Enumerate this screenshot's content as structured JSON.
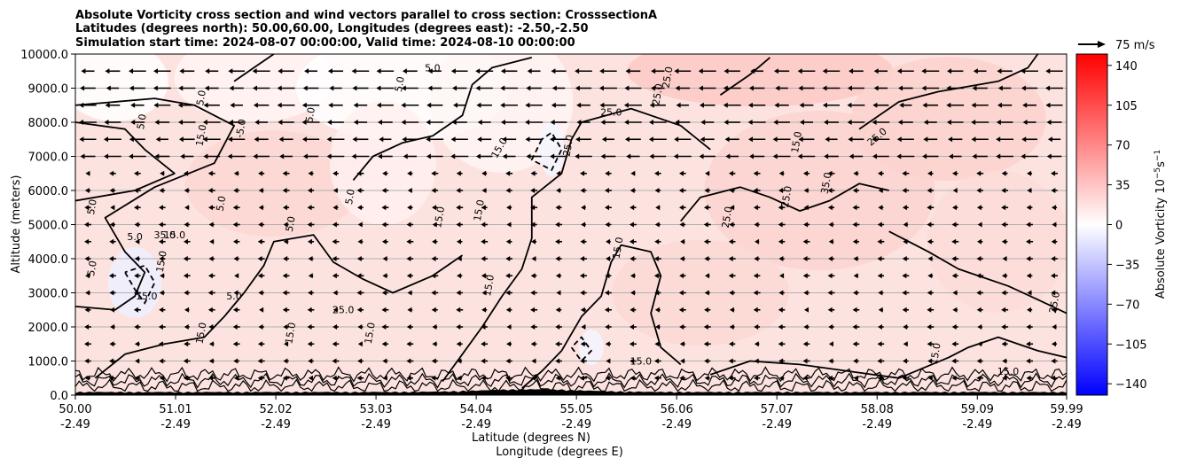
{
  "chart_data": {
    "type": "heatmap",
    "title_lines": [
      "Absolute Vorticity cross section and wind vectors parallel to cross section: CrosssectionA",
      "Latitudes (degrees north): 50.00,60.00, Longitudes (degrees east): -2.50,-2.50",
      "Simulation start time: 2024-08-07 00:00:00, Valid time: 2024-08-10 00:00:00"
    ],
    "xlabel_lines": [
      "Latitude (degrees N)",
      "Longitude (degrees E)"
    ],
    "ylabel": "Altitude (meters)",
    "x_ticks": [
      {
        "lat": "50.00",
        "lon": "-2.49"
      },
      {
        "lat": "51.01",
        "lon": "-2.49"
      },
      {
        "lat": "52.02",
        "lon": "-2.49"
      },
      {
        "lat": "53.03",
        "lon": "-2.49"
      },
      {
        "lat": "54.04",
        "lon": "-2.49"
      },
      {
        "lat": "55.05",
        "lon": "-2.49"
      },
      {
        "lat": "56.06",
        "lon": "-2.49"
      },
      {
        "lat": "57.07",
        "lon": "-2.49"
      },
      {
        "lat": "58.08",
        "lon": "-2.49"
      },
      {
        "lat": "59.09",
        "lon": "-2.49"
      },
      {
        "lat": "59.99",
        "lon": "-2.49"
      }
    ],
    "x_range": [
      50.0,
      59.99
    ],
    "y_ticks": [
      "0.0",
      "1000.0",
      "2000.0",
      "3000.0",
      "4000.0",
      "5000.0",
      "6000.0",
      "7000.0",
      "8000.0",
      "9000.0",
      "10000.0"
    ],
    "y_range": [
      0,
      10000
    ],
    "horizontal_grid": true,
    "colorbar": {
      "label": "Absolute Vorticity 10$^{-5}$s$^{-1}$",
      "label_main": "Absolute Vorticity 10",
      "label_exp1": "−5",
      "label_mid": "s",
      "label_exp2": "−1",
      "ticks": [
        "140",
        "105",
        "70",
        "35",
        "0",
        "−35",
        "−70",
        "−105",
        "−140"
      ],
      "range": [
        -150,
        150
      ],
      "colormap": "bwr",
      "color_low": "#0000ff",
      "color_mid": "#ffffff",
      "color_high": "#ff0000"
    },
    "quiver_key": {
      "label": "75 m/s",
      "speed": 75
    },
    "wind": {
      "columns": 40,
      "rows_altitudes": [
        9500,
        9000,
        8500,
        8000,
        7500,
        7000,
        6500,
        6000,
        5500,
        5000,
        4500,
        4000,
        3500,
        3000,
        2500,
        2000,
        1500,
        1000,
        500
      ],
      "upper_speed": 20,
      "lower_speed": 5
    },
    "contour_levels_labeled": [
      "5.0",
      "15.0",
      "25.0",
      "35.0",
      "-5.0",
      "-15.0"
    ],
    "contour_labels": [
      {
        "text": "5.0",
        "lat": 53.6,
        "alt": 9500,
        "rot": 0
      },
      {
        "text": "5.0",
        "lat": 51.3,
        "alt": 8700,
        "rot": -80
      },
      {
        "text": "5.0",
        "lat": 50.7,
        "alt": 8000,
        "rot": -80
      },
      {
        "text": "5.0",
        "lat": 51.5,
        "alt": 5600,
        "rot": -80
      },
      {
        "text": "5.0",
        "lat": 50.2,
        "alt": 5500,
        "rot": -80
      },
      {
        "text": "5.0",
        "lat": 50.6,
        "alt": 4550,
        "rot": 0
      },
      {
        "text": "5.0",
        "lat": 50.2,
        "alt": 3700,
        "rot": -80
      },
      {
        "text": "5.0",
        "lat": 51.6,
        "alt": 2800,
        "rot": 0
      },
      {
        "text": "5.0",
        "lat": 52.2,
        "alt": 5000,
        "rot": -80
      },
      {
        "text": "5.0",
        "lat": 52.8,
        "alt": 5800,
        "rot": -80
      },
      {
        "text": "5.0",
        "lat": 52.4,
        "alt": 8200,
        "rot": -80
      },
      {
        "text": "5.0",
        "lat": 53.3,
        "alt": 9100,
        "rot": -80
      },
      {
        "text": "-5.0",
        "lat": 51.7,
        "alt": 7800,
        "rot": -80
      },
      {
        "text": "15.0",
        "lat": 51.3,
        "alt": 7600,
        "rot": -80
      },
      {
        "text": "15.0",
        "lat": 51.0,
        "alt": 4600,
        "rot": 0
      },
      {
        "text": "15.0",
        "lat": 50.9,
        "alt": 3900,
        "rot": -80
      },
      {
        "text": "15.0",
        "lat": 51.3,
        "alt": 1800,
        "rot": -80
      },
      {
        "text": "15.0",
        "lat": 52.2,
        "alt": 1800,
        "rot": -80
      },
      {
        "text": "15.0",
        "lat": 53.0,
        "alt": 1800,
        "rot": -80
      },
      {
        "text": "15.0",
        "lat": 54.3,
        "alt": 7200,
        "rot": -60
      },
      {
        "text": "15.0",
        "lat": 54.1,
        "alt": 5400,
        "rot": -80
      },
      {
        "text": "15.0",
        "lat": 53.7,
        "alt": 5200,
        "rot": -80
      },
      {
        "text": "15.0",
        "lat": 54.2,
        "alt": 3200,
        "rot": -80
      },
      {
        "text": "15.0",
        "lat": 55.5,
        "alt": 4300,
        "rot": -80
      },
      {
        "text": "15.0",
        "lat": 55.7,
        "alt": 900,
        "rot": 0
      },
      {
        "text": "15.0",
        "lat": 57.3,
        "alt": 7400,
        "rot": -80
      },
      {
        "text": "15.0",
        "lat": 58.7,
        "alt": 1200,
        "rot": -80
      },
      {
        "text": "15.0",
        "lat": 59.4,
        "alt": 600,
        "rot": 0
      },
      {
        "text": "25.0",
        "lat": 55.4,
        "alt": 8200,
        "rot": 0
      },
      {
        "text": "25.0",
        "lat": 55.9,
        "alt": 8800,
        "rot": -80
      },
      {
        "text": "25.0",
        "lat": 56.0,
        "alt": 9300,
        "rot": -80
      },
      {
        "text": "25.0",
        "lat": 55.0,
        "alt": 7300,
        "rot": -80
      },
      {
        "text": "25.0",
        "lat": 56.6,
        "alt": 5200,
        "rot": -80
      },
      {
        "text": "25.0",
        "lat": 57.2,
        "alt": 5800,
        "rot": -80
      },
      {
        "text": "25.0",
        "lat": 58.1,
        "alt": 7500,
        "rot": -40
      },
      {
        "text": "25.0",
        "lat": 52.7,
        "alt": 2400,
        "rot": 0
      },
      {
        "text": "25.0",
        "lat": 59.9,
        "alt": 2700,
        "rot": -80
      },
      {
        "text": "35.0",
        "lat": 57.6,
        "alt": 6200,
        "rot": -80
      },
      {
        "text": "35.0",
        "lat": 50.9,
        "alt": 4600,
        "rot": 0
      },
      {
        "text": "-15.0",
        "lat": 50.7,
        "alt": 2800,
        "rot": 0
      }
    ],
    "contour_segments": [
      {
        "points": [
          [
            50.0,
            2600
          ],
          [
            50.4,
            2500
          ],
          [
            50.6,
            2900
          ],
          [
            50.7,
            3600
          ],
          [
            50.5,
            4200
          ],
          [
            50.3,
            5200
          ],
          [
            50.8,
            6100
          ],
          [
            51.4,
            6800
          ],
          [
            51.6,
            7900
          ],
          [
            51.2,
            8500
          ],
          [
            50.8,
            8700
          ],
          [
            50.0,
            8500
          ]
        ]
      },
      {
        "points": [
          [
            50.0,
            8000
          ],
          [
            50.5,
            7800
          ],
          [
            50.7,
            7200
          ],
          [
            51.0,
            6500
          ],
          [
            50.6,
            6000
          ],
          [
            50.0,
            5700
          ]
        ]
      },
      {
        "points": [
          [
            50.2,
            500
          ],
          [
            50.5,
            1200
          ],
          [
            50.9,
            1500
          ],
          [
            51.3,
            1700
          ],
          [
            51.5,
            2300
          ],
          [
            51.7,
            3000
          ],
          [
            51.9,
            3800
          ],
          [
            52.0,
            4500
          ],
          [
            52.4,
            4700
          ],
          [
            52.6,
            3900
          ],
          [
            52.9,
            3400
          ],
          [
            53.2,
            3000
          ],
          [
            53.6,
            3500
          ],
          [
            53.9,
            4100
          ]
        ]
      },
      {
        "points": [
          [
            52.8,
            6300
          ],
          [
            53.0,
            7000
          ],
          [
            53.3,
            7400
          ],
          [
            53.6,
            7600
          ],
          [
            53.9,
            8200
          ],
          [
            54.0,
            9100
          ],
          [
            54.2,
            9600
          ],
          [
            54.6,
            9900
          ]
        ]
      },
      {
        "points": [
          [
            53.7,
            400
          ],
          [
            53.9,
            1200
          ],
          [
            54.1,
            2000
          ],
          [
            54.3,
            2900
          ],
          [
            54.5,
            3700
          ],
          [
            54.6,
            4600
          ],
          [
            54.6,
            5800
          ],
          [
            54.9,
            6500
          ],
          [
            55.0,
            7500
          ],
          [
            55.1,
            8000
          ],
          [
            55.6,
            8400
          ],
          [
            56.1,
            7900
          ],
          [
            56.4,
            7200
          ]
        ]
      },
      {
        "points": [
          [
            54.5,
            200
          ],
          [
            54.7,
            700
          ],
          [
            54.9,
            1300
          ],
          [
            55.1,
            2300
          ],
          [
            55.3,
            2900
          ],
          [
            55.4,
            3900
          ],
          [
            55.5,
            4400
          ],
          [
            55.8,
            4200
          ],
          [
            55.9,
            3500
          ],
          [
            55.8,
            2400
          ],
          [
            55.9,
            1400
          ],
          [
            56.1,
            900
          ]
        ]
      },
      {
        "points": [
          [
            56.1,
            5100
          ],
          [
            56.3,
            5800
          ],
          [
            56.7,
            6100
          ],
          [
            57.0,
            5800
          ],
          [
            57.3,
            5400
          ],
          [
            57.6,
            5700
          ],
          [
            57.9,
            6200
          ],
          [
            58.2,
            6000
          ]
        ]
      },
      {
        "points": [
          [
            56.4,
            600
          ],
          [
            56.8,
            1000
          ],
          [
            57.3,
            900
          ],
          [
            57.8,
            700
          ],
          [
            58.3,
            500
          ],
          [
            58.8,
            1100
          ],
          [
            59.0,
            1400
          ],
          [
            59.3,
            1700
          ],
          [
            59.7,
            1300
          ],
          [
            59.99,
            1100
          ]
        ]
      },
      {
        "points": [
          [
            57.9,
            7800
          ],
          [
            58.3,
            8600
          ],
          [
            58.7,
            8900
          ],
          [
            59.3,
            9200
          ],
          [
            59.6,
            9600
          ],
          [
            59.7,
            10000
          ]
        ]
      },
      {
        "points": [
          [
            56.5,
            8800
          ],
          [
            56.8,
            9400
          ],
          [
            57.0,
            9900
          ]
        ]
      },
      {
        "points": [
          [
            51.6,
            9200
          ],
          [
            51.8,
            9600
          ],
          [
            52.0,
            10000
          ]
        ]
      },
      {
        "points": [
          [
            58.2,
            4800
          ],
          [
            58.6,
            4200
          ],
          [
            58.9,
            3700
          ],
          [
            59.4,
            3200
          ],
          [
            59.7,
            2800
          ],
          [
            59.99,
            2400
          ]
        ]
      }
    ],
    "negative_contours": [
      {
        "points": [
          [
            50.5,
            3600
          ],
          [
            50.6,
            3100
          ],
          [
            50.7,
            2700
          ],
          [
            50.8,
            3300
          ],
          [
            50.7,
            3800
          ],
          [
            50.5,
            3600
          ]
        ]
      },
      {
        "points": [
          [
            54.7,
            7500
          ],
          [
            54.6,
            6900
          ],
          [
            54.8,
            6600
          ],
          [
            54.9,
            7200
          ],
          [
            54.8,
            7700
          ],
          [
            54.7,
            7500
          ]
        ]
      },
      {
        "points": [
          [
            55.0,
            1400
          ],
          [
            55.1,
            1000
          ],
          [
            55.2,
            1300
          ],
          [
            55.1,
            1700
          ],
          [
            55.0,
            1400
          ]
        ]
      }
    ]
  }
}
